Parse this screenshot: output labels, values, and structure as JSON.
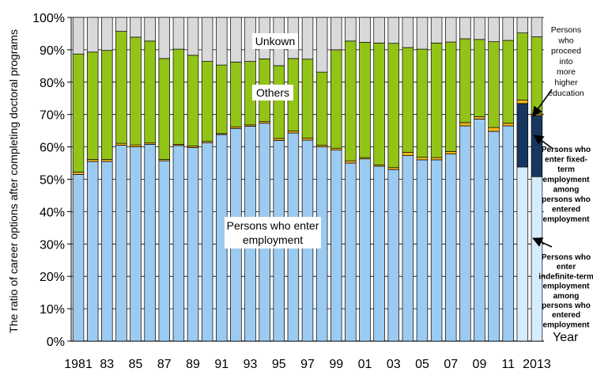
{
  "chart_data": {
    "type": "bar",
    "stacked": true,
    "ylabel": "The ratio of career options after completing doctoral programs",
    "xlabel": "Year",
    "ylim": [
      0,
      100
    ],
    "yticks": [
      "0%",
      "10%",
      "20%",
      "30%",
      "40%",
      "50%",
      "60%",
      "70%",
      "80%",
      "90%",
      "100%"
    ],
    "x_tick_labels": [
      "1981",
      "83",
      "85",
      "87",
      "89",
      "91",
      "93",
      "95",
      "97",
      "99",
      "01",
      "03",
      "05",
      "07",
      "09",
      "11",
      "2013"
    ],
    "categories": [
      "1981",
      "1982",
      "1983",
      "1984",
      "1985",
      "1986",
      "1987",
      "1988",
      "1989",
      "1990",
      "1991",
      "1992",
      "1993",
      "1994",
      "1995",
      "1996",
      "1997",
      "1998",
      "1999",
      "2000",
      "2001",
      "2002",
      "2003",
      "2004",
      "2005",
      "2006",
      "2007",
      "2008",
      "2009",
      "2010",
      "2011",
      "2012",
      "2013"
    ],
    "series": [
      {
        "key": "emp",
        "name": "Persons who enter employment",
        "color": "#9ccbf2",
        "values": [
          51.5,
          55.5,
          55.5,
          60.5,
          60,
          60.8,
          55.7,
          60.4,
          59.8,
          61.3,
          63.8,
          65.7,
          66.4,
          67.3,
          62,
          64.3,
          62.1,
          60,
          59,
          55,
          56.3,
          54,
          53,
          57.3,
          56,
          56,
          57.8,
          66.5,
          68.6,
          64.8,
          66.5,
          0,
          0
        ]
      },
      {
        "key": "indef",
        "name": "Persons who enter indefinite-term employment among persons who entered employment",
        "color": "#d6ecfc",
        "values": [
          0,
          0,
          0,
          0,
          0,
          0,
          0,
          0,
          0,
          0,
          0,
          0,
          0,
          0,
          0,
          0,
          0,
          0,
          0,
          0,
          0,
          0,
          0,
          0,
          0,
          0,
          0,
          0,
          0,
          0,
          0,
          53.8,
          50.8
        ]
      },
      {
        "key": "fixed",
        "name": "Persons who enter fixed-term employment among persons who entered employment",
        "color": "#17375e",
        "values": [
          0,
          0,
          0,
          0,
          0,
          0,
          0,
          0,
          0,
          0,
          0,
          0,
          0,
          0,
          0,
          0,
          0,
          0,
          0,
          0,
          0,
          0,
          0,
          0,
          0,
          0,
          0,
          0,
          0,
          0,
          0,
          19.6,
          18.9
        ]
      },
      {
        "key": "higher",
        "name": "Persons who proceed into more higher education",
        "color": "#f5b51a",
        "values": [
          0.7,
          0.6,
          0.6,
          0.6,
          0.6,
          0.4,
          0.4,
          0.4,
          0.5,
          0.4,
          0.3,
          0.5,
          0.4,
          0.5,
          0.6,
          0.6,
          0.6,
          0.5,
          0.6,
          0.7,
          0.4,
          0.4,
          0.6,
          1,
          0.8,
          0.7,
          0.8,
          1,
          0.7,
          1.2,
          0.8,
          1.1,
          0.5
        ]
      },
      {
        "key": "others",
        "name": "Others",
        "color": "#92c418",
        "values": [
          36.5,
          33.2,
          33.7,
          34.6,
          33.3,
          31.5,
          31.2,
          29.4,
          28,
          24.7,
          21.2,
          20,
          19.6,
          19.4,
          22.5,
          22.4,
          24.4,
          22.6,
          30.4,
          37,
          35.6,
          37.7,
          38.4,
          32.4,
          33.4,
          35.4,
          33.8,
          25.9,
          23.9,
          26.5,
          25.6,
          20.7,
          23.8
        ]
      },
      {
        "key": "unknown",
        "name": "Unkown",
        "color": "#d9d9d9",
        "values": [
          11.3,
          10.7,
          10.2,
          4.3,
          6.1,
          7.3,
          12.7,
          9.8,
          11.7,
          13.6,
          14.7,
          13.8,
          13.6,
          12.8,
          14.9,
          12.7,
          12.9,
          16.9,
          10,
          7.3,
          7.7,
          7.9,
          8,
          9.3,
          9.8,
          7.9,
          7.6,
          6.6,
          6.8,
          7.5,
          7.1,
          4.8,
          6
        ]
      }
    ]
  },
  "annotations": {
    "unknown": "Unkown",
    "others": "Others",
    "employment": [
      "Persons who enter",
      "employment"
    ],
    "higher_education": [
      "Persons",
      "who",
      "proceed",
      "into",
      "more",
      "higher",
      "education"
    ],
    "fixed_term": [
      "Persons who",
      "enter fixed-",
      "term",
      "employment",
      "among",
      "persons who",
      "entered",
      "employment"
    ],
    "indefinite_term": [
      "Persons who",
      "enter",
      "indefinite-term",
      "employment",
      "among",
      "persons who",
      "entered",
      "employment"
    ]
  }
}
